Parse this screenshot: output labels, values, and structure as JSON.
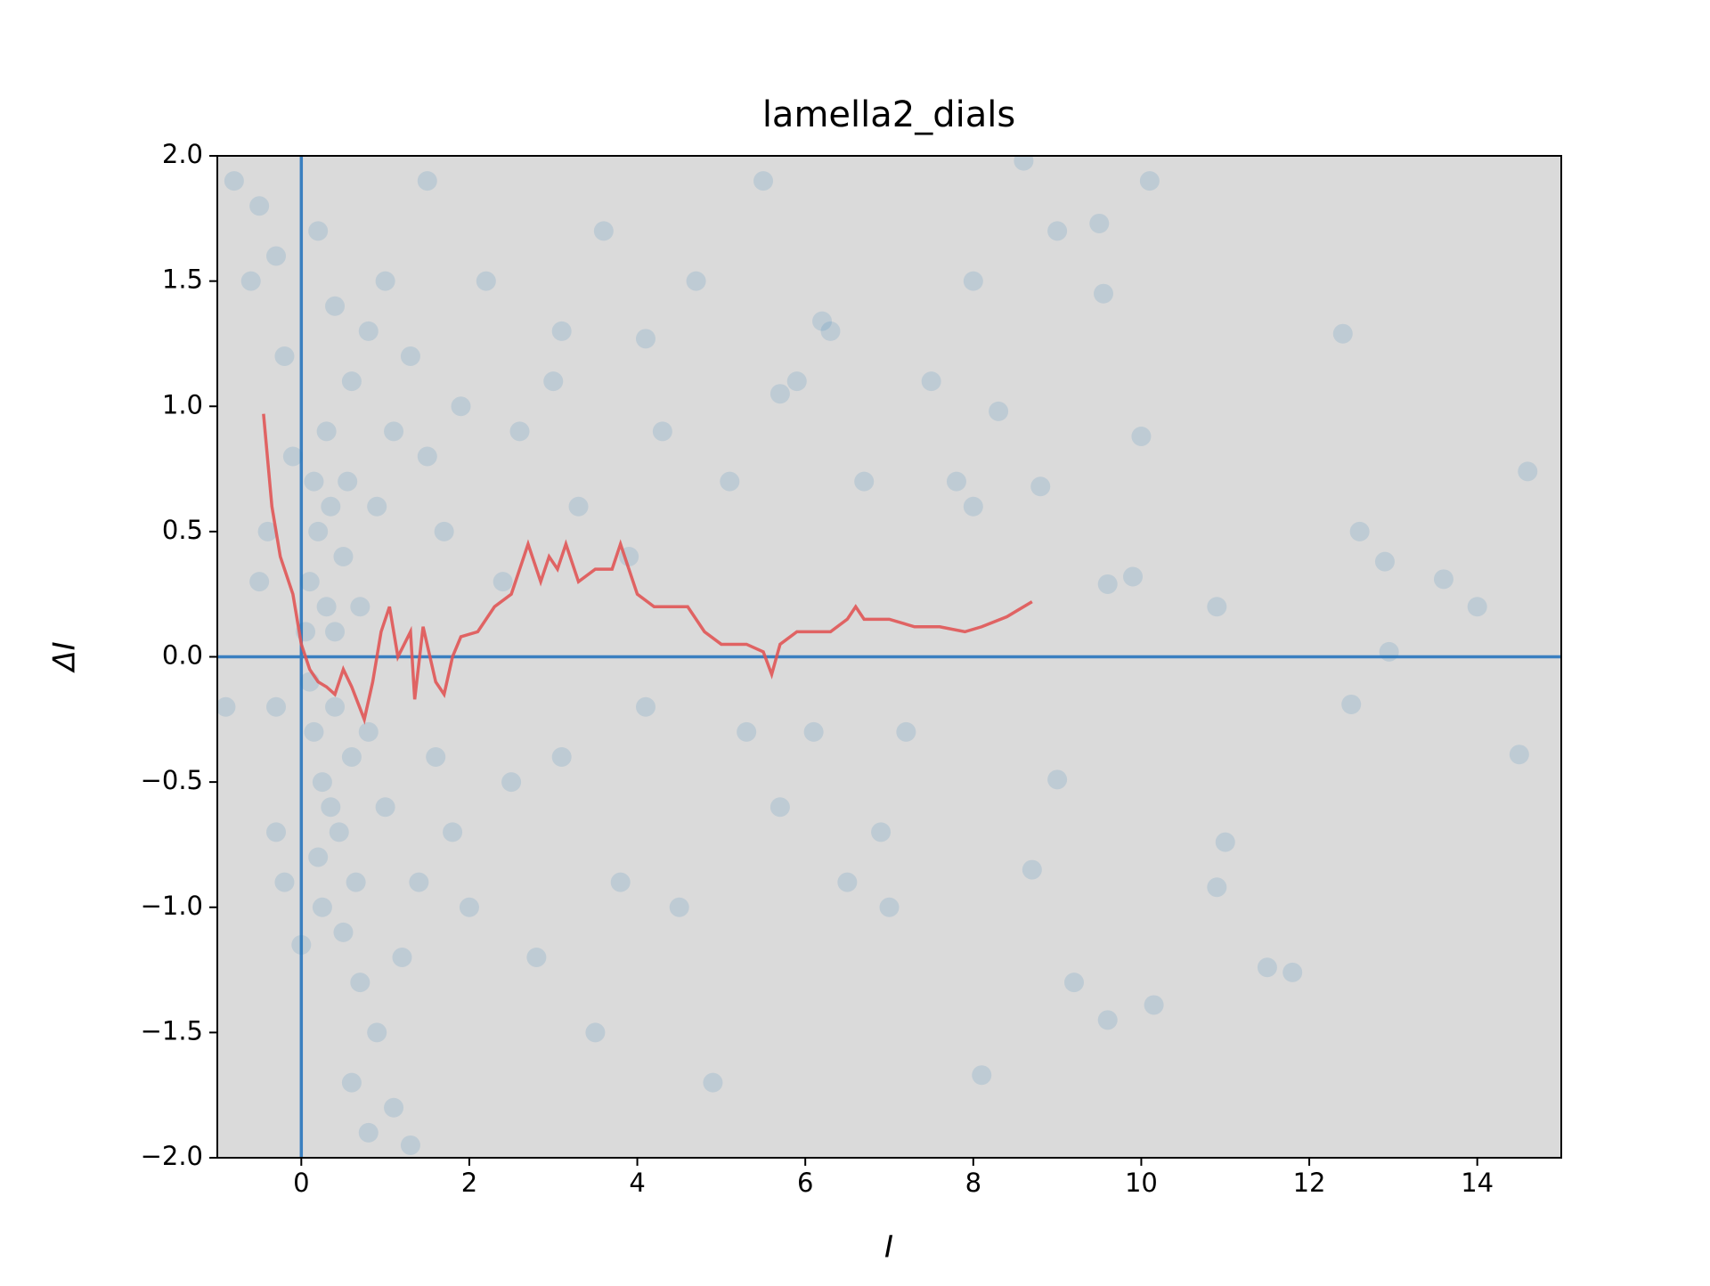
{
  "chart_data": {
    "type": "scatter",
    "title": "lamella2_dials",
    "xlabel": "I",
    "ylabel": "ΔI",
    "xlim": [
      -1,
      15
    ],
    "ylim": [
      -2,
      2
    ],
    "xticks": [
      0,
      2,
      4,
      6,
      8,
      10,
      12,
      14
    ],
    "yticks": [
      {
        "value": -2,
        "label": "−2.0"
      },
      {
        "value": -1.5,
        "label": "−1.5"
      },
      {
        "value": -1,
        "label": "−1.0"
      },
      {
        "value": -0.5,
        "label": "−0.5"
      },
      {
        "value": 0,
        "label": "0.0"
      },
      {
        "value": 0.5,
        "label": "0.5"
      },
      {
        "value": 1,
        "label": "1.0"
      },
      {
        "value": 1.5,
        "label": "1.5"
      },
      {
        "value": 2,
        "label": "2.0"
      }
    ],
    "background": "#dadada",
    "hlines": [
      0
    ],
    "vlines": [
      0
    ],
    "ref_color": "#3a7fc0",
    "scatter": {
      "color": "#1f77b4",
      "x": [
        0.1,
        0.2,
        0.3,
        0.15,
        0.25,
        0.4,
        0.05,
        0.35,
        0.45,
        0.5,
        0.6,
        0.2,
        0.3,
        0.1,
        0.4,
        0.55,
        0.65,
        0.7,
        0.8,
        0.9,
        1.0,
        1.1,
        0.15,
        0.25,
        0.35,
        0.5,
        0.6,
        0.7,
        0.8,
        0.9,
        1.0,
        1.2,
        1.3,
        1.4,
        1.5,
        1.6,
        1.7,
        1.8,
        1.9,
        2.0,
        -0.2,
        -0.3,
        -0.5,
        -0.1,
        -0.4,
        -0.3,
        -0.5,
        -0.8,
        -0.6,
        -0.9,
        -0.3,
        -0.2,
        0.0,
        0.2,
        0.4,
        0.6,
        0.8,
        1.1,
        1.3,
        1.5,
        2.2,
        2.4,
        2.5,
        2.6,
        2.8,
        3.0,
        3.1,
        3.3,
        3.5,
        3.6,
        3.8,
        3.9,
        4.1,
        4.3,
        4.5,
        4.7,
        4.9,
        5.1,
        5.3,
        5.5,
        5.7,
        5.9,
        6.1,
        6.3,
        6.5,
        6.7,
        6.9,
        7.0,
        7.2,
        7.5,
        7.8,
        8.0,
        8.1,
        8.3,
        8.6,
        8.7,
        8.8,
        9.0,
        9.0,
        9.2,
        9.5,
        9.6,
        9.6,
        9.9,
        10.0,
        10.1,
        10.15,
        10.9,
        10.9,
        11.0,
        11.5,
        11.8,
        12.4,
        12.5,
        12.6,
        12.9,
        12.95,
        13.6,
        14.0,
        14.5,
        14.6,
        9.55,
        8.0,
        5.7,
        6.2,
        4.1,
        3.1
      ],
      "y": [
        0.3,
        0.5,
        0.2,
        -0.3,
        -0.5,
        -0.2,
        0.1,
        0.6,
        -0.7,
        0.4,
        -0.4,
        -0.8,
        0.9,
        -0.1,
        0.1,
        0.7,
        -0.9,
        0.2,
        -0.3,
        0.6,
        -0.6,
        0.9,
        0.7,
        -1.0,
        -0.6,
        -1.1,
        1.1,
        -1.3,
        1.3,
        -1.5,
        1.5,
        -1.2,
        1.2,
        -0.9,
        0.8,
        -0.4,
        0.5,
        -0.7,
        1.0,
        -1.0,
        1.2,
        1.6,
        1.8,
        0.8,
        0.5,
        -0.2,
        0.3,
        1.9,
        1.5,
        -0.2,
        -0.7,
        -0.9,
        -1.15,
        1.7,
        1.4,
        -1.7,
        -1.9,
        -1.8,
        -1.95,
        1.9,
        1.5,
        0.3,
        -0.5,
        0.9,
        -1.2,
        1.1,
        -0.4,
        0.6,
        -1.5,
        1.7,
        -0.9,
        0.4,
        -0.2,
        0.9,
        -1.0,
        1.5,
        -1.7,
        0.7,
        -0.3,
        1.9,
        -0.6,
        1.1,
        -0.3,
        1.3,
        -0.9,
        0.7,
        -0.7,
        -1.0,
        -0.3,
        1.1,
        0.7,
        0.6,
        -1.67,
        0.98,
        1.98,
        -0.85,
        0.68,
        1.7,
        -0.49,
        -1.3,
        1.73,
        0.29,
        -1.45,
        0.32,
        0.88,
        1.9,
        -1.39,
        0.2,
        -0.92,
        -0.74,
        -1.24,
        -1.26,
        1.29,
        -0.19,
        0.5,
        0.38,
        0.02,
        0.31,
        0.2,
        -0.39,
        0.74,
        1.45,
        1.5,
        1.05,
        1.34,
        1.27,
        1.3
      ]
    },
    "line": {
      "color": "#e05555",
      "x": [
        -0.45,
        -0.35,
        -0.25,
        -0.1,
        0.0,
        0.1,
        0.2,
        0.3,
        0.4,
        0.5,
        0.6,
        0.75,
        0.85,
        0.95,
        1.05,
        1.15,
        1.3,
        1.35,
        1.45,
        1.6,
        1.7,
        1.8,
        1.9,
        2.1,
        2.3,
        2.5,
        2.6,
        2.7,
        2.85,
        2.95,
        3.05,
        3.15,
        3.3,
        3.5,
        3.7,
        3.8,
        3.9,
        4.0,
        4.2,
        4.4,
        4.6,
        4.8,
        5.0,
        5.3,
        5.5,
        5.6,
        5.7,
        5.9,
        6.1,
        6.3,
        6.5,
        6.6,
        6.7,
        7.0,
        7.3,
        7.6,
        7.9,
        8.1,
        8.4,
        8.7
      ],
      "y": [
        0.97,
        0.6,
        0.4,
        0.25,
        0.05,
        -0.05,
        -0.1,
        -0.12,
        -0.15,
        -0.05,
        -0.12,
        -0.25,
        -0.1,
        0.1,
        0.2,
        0.0,
        0.1,
        -0.17,
        0.12,
        -0.1,
        -0.15,
        0.0,
        0.08,
        0.1,
        0.2,
        0.25,
        0.35,
        0.45,
        0.3,
        0.4,
        0.35,
        0.45,
        0.3,
        0.35,
        0.35,
        0.45,
        0.35,
        0.25,
        0.2,
        0.2,
        0.2,
        0.1,
        0.05,
        0.05,
        0.02,
        -0.07,
        0.05,
        0.1,
        0.1,
        0.1,
        0.15,
        0.2,
        0.15,
        0.15,
        0.12,
        0.12,
        0.1,
        0.12,
        0.16,
        0.22
      ]
    }
  }
}
